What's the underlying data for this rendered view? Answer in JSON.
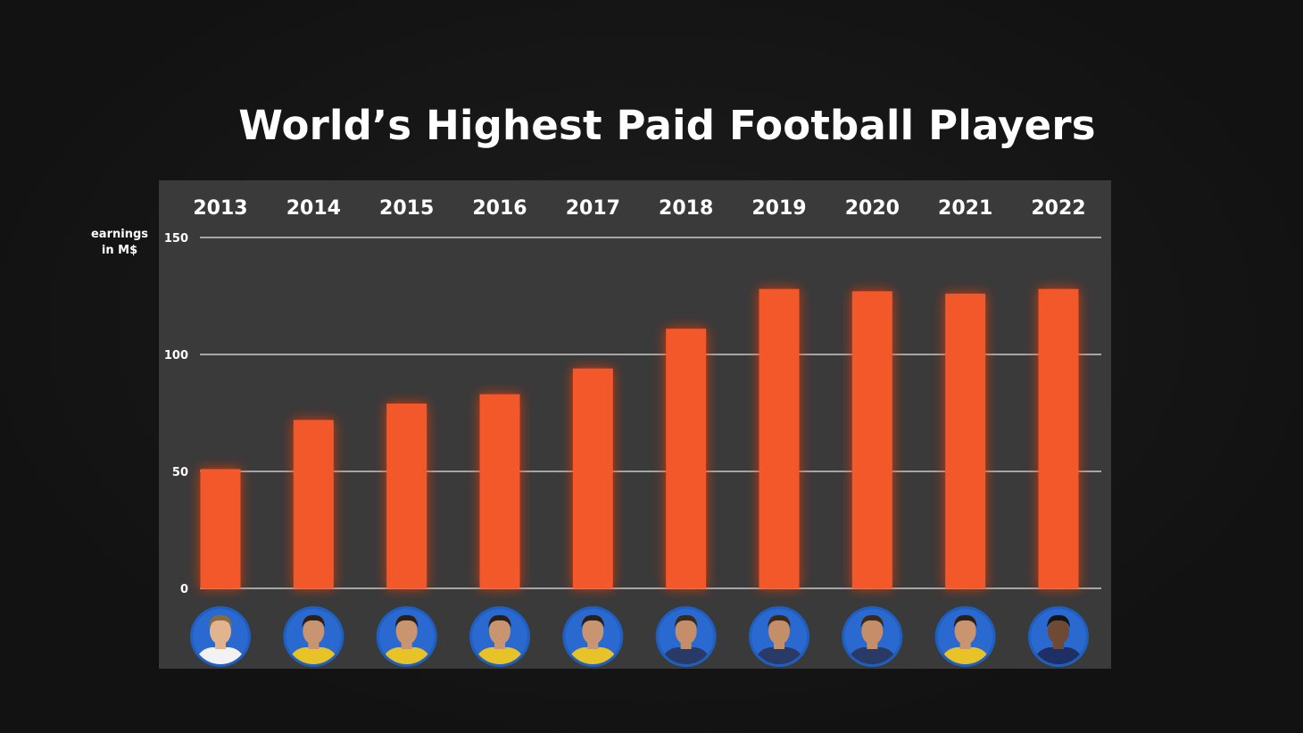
{
  "title": "World’s Highest Paid Football Players",
  "y_axis_label": [
    "earnings",
    "in M$"
  ],
  "colors": {
    "bar": "#f2582a",
    "bar_glow": "#ff3c10",
    "avatar_ring": "#1f5fbf",
    "panel": "#3a3a3a",
    "background": "#141414"
  },
  "chart_data": {
    "type": "bar",
    "categories": [
      "2013",
      "2014",
      "2015",
      "2016",
      "2017",
      "2018",
      "2019",
      "2020",
      "2021",
      "2022"
    ],
    "values": [
      51,
      72,
      79,
      83,
      94,
      111,
      128,
      127,
      126,
      128
    ],
    "ylabel": "earnings in M$",
    "ylim": [
      0,
      150
    ],
    "yticks": [
      0,
      50,
      100,
      150
    ],
    "grid": true,
    "category_labels_position": "top",
    "player_avatars": [
      "avatar-player-a",
      "avatar-player-b",
      "avatar-player-b",
      "avatar-player-b",
      "avatar-player-b",
      "avatar-player-c",
      "avatar-player-c",
      "avatar-player-c",
      "avatar-player-b",
      "avatar-player-d"
    ]
  }
}
